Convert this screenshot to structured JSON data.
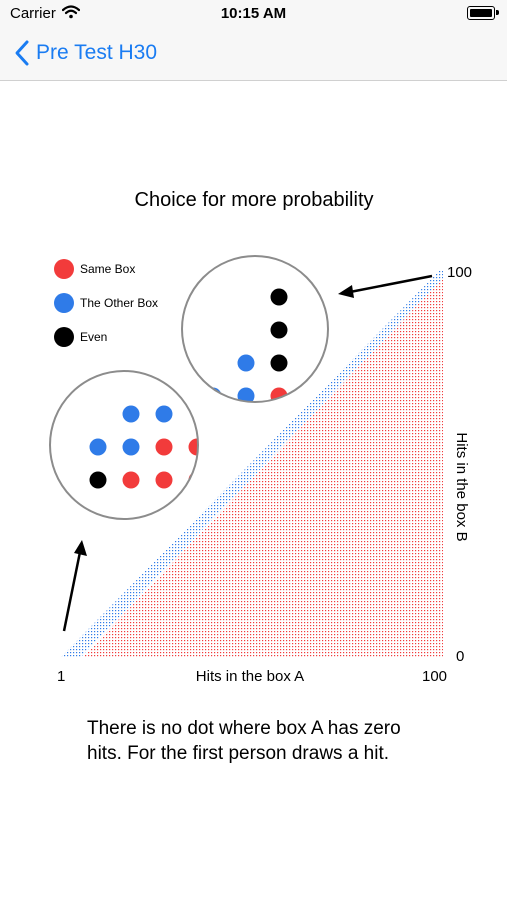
{
  "status_bar": {
    "carrier": "Carrier",
    "time": "10:15 AM"
  },
  "nav": {
    "back_label": "Pre Test H30",
    "accent": "#1a7cf2"
  },
  "figure": {
    "title": "Choice for more probability",
    "legend": [
      {
        "label": "Same Box",
        "color": "#f23b3b"
      },
      {
        "label": "The Other Box",
        "color": "#2f7be8"
      },
      {
        "label": "Even",
        "color": "#000000"
      }
    ],
    "x_axis_label": "Hits in the box A",
    "x_min_label": "1",
    "x_max_label": "100",
    "y_axis_label": "Hits in the box B",
    "y_min_label": "0",
    "y_max_label": "100"
  },
  "chart_data": {
    "type": "scatter",
    "x_range": [
      1,
      100
    ],
    "y_range": [
      0,
      100
    ],
    "regions": [
      {
        "name": "Same Box",
        "color": "#f23b3b",
        "rule": "B < A"
      },
      {
        "name": "The Other Box",
        "color": "#2f7be8",
        "rule": "A <= B <= A+ (narrow band above diagonal)"
      },
      {
        "name": "Even",
        "color": "#000000",
        "rule": "few points on the diagonal"
      }
    ],
    "zoom_upper": [
      {
        "x": 4,
        "y": 1,
        "color": "black"
      },
      {
        "x": 4,
        "y": 2,
        "color": "black"
      },
      {
        "x": 3,
        "y": 3,
        "color": "blue"
      },
      {
        "x": 4,
        "y": 3,
        "color": "black"
      },
      {
        "x": 2,
        "y": 4,
        "color": "blue"
      },
      {
        "x": 3,
        "y": 4,
        "color": "blue"
      },
      {
        "x": 4,
        "y": 4,
        "color": "red"
      },
      {
        "x": 2,
        "y": 5,
        "color": "blue"
      },
      {
        "x": 3,
        "y": 5,
        "color": "red"
      },
      {
        "x": 4,
        "y": 5,
        "color": "red"
      }
    ],
    "zoom_lower": [
      {
        "x": 3,
        "y": 1,
        "color": "blue"
      },
      {
        "x": 4,
        "y": 1,
        "color": "blue"
      },
      {
        "x": 2,
        "y": 2,
        "color": "blue"
      },
      {
        "x": 3,
        "y": 2,
        "color": "blue"
      },
      {
        "x": 4,
        "y": 2,
        "color": "red"
      },
      {
        "x": 5,
        "y": 2,
        "color": "red"
      },
      {
        "x": 2,
        "y": 3,
        "color": "black"
      },
      {
        "x": 3,
        "y": 3,
        "color": "red"
      },
      {
        "x": 4,
        "y": 3,
        "color": "red"
      },
      {
        "x": 5,
        "y": 3,
        "color": "red"
      }
    ]
  },
  "note": "There is no dot where box A has zero hits. For the first person draws a hit."
}
